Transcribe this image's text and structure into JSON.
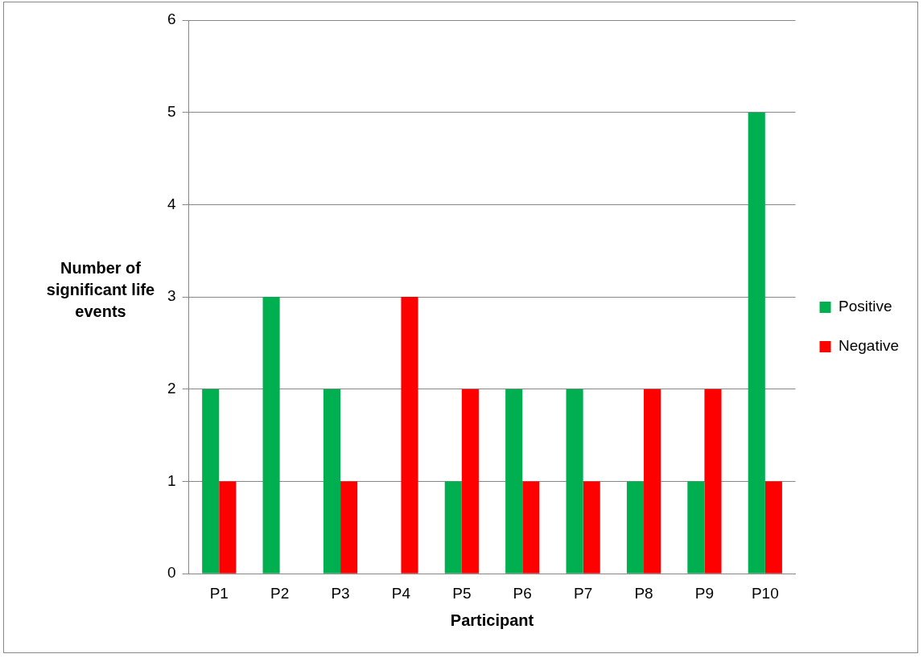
{
  "chart_data": {
    "type": "bar",
    "xlabel": "Participant",
    "ylabel": "Number of significant life events",
    "categories": [
      "P1",
      "P2",
      "P3",
      "P4",
      "P5",
      "P6",
      "P7",
      "P8",
      "P9",
      "P10"
    ],
    "series": [
      {
        "name": "Positive",
        "color": "#00b050",
        "values": [
          2,
          3,
          2,
          0,
          1,
          2,
          2,
          1,
          1,
          5
        ]
      },
      {
        "name": "Negative",
        "color": "#ff0000",
        "values": [
          1,
          0,
          1,
          3,
          2,
          1,
          1,
          2,
          2,
          1
        ]
      }
    ],
    "ylim": [
      0,
      6
    ],
    "yticks": [
      0,
      1,
      2,
      3,
      4,
      5,
      6
    ],
    "grid": "y",
    "legend": "right"
  }
}
